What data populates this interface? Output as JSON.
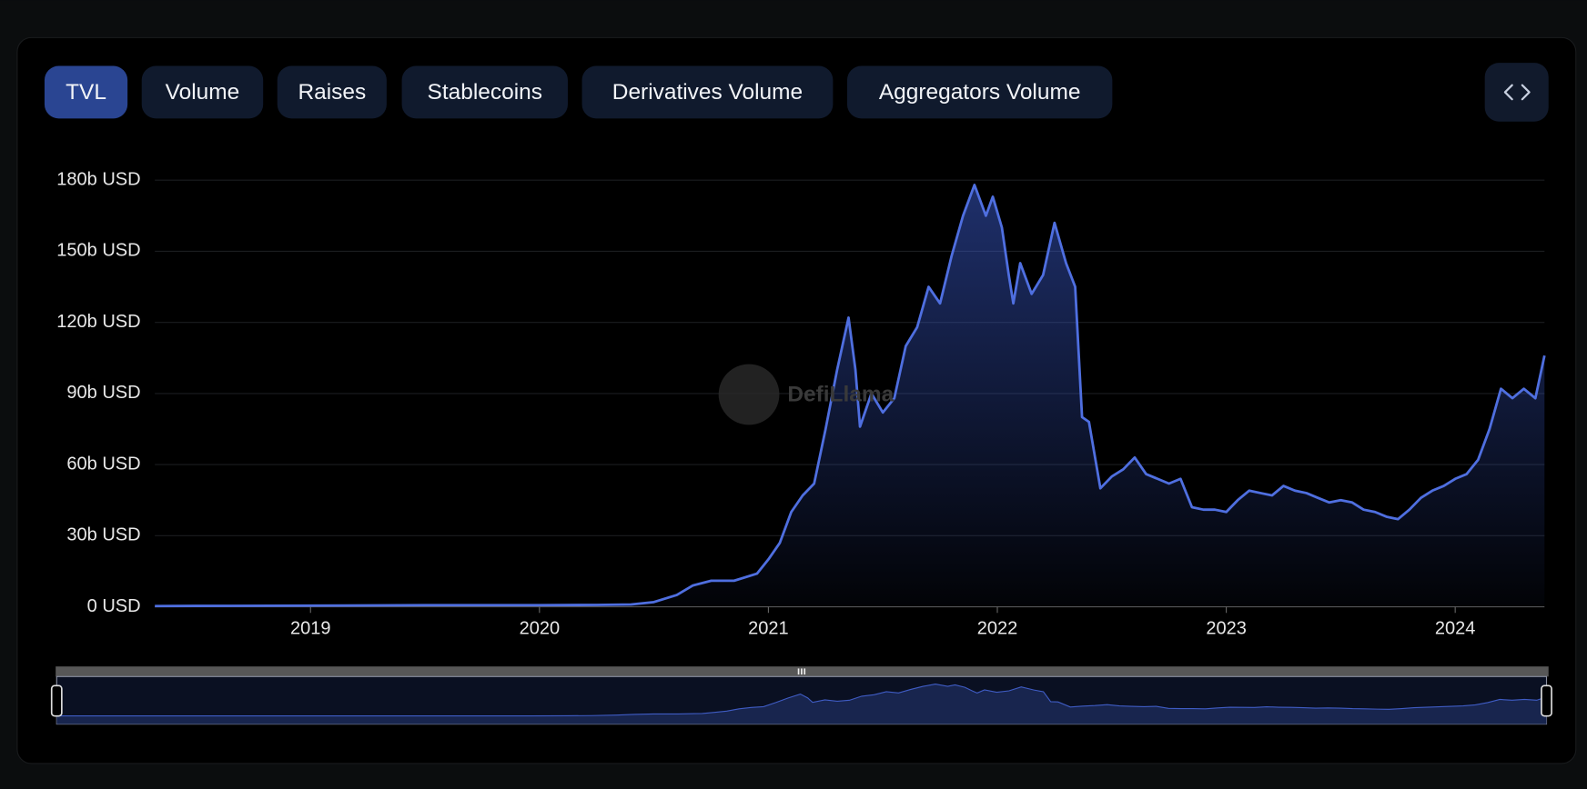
{
  "tabs": [
    "TVL",
    "Volume",
    "Raises",
    "Stablecoins",
    "Derivatives Volume",
    "Aggregators Volume"
  ],
  "chart_data": {
    "type": "area",
    "watermark": "DefiLlama",
    "color": "#4f6fe0",
    "x": [
      2018.32,
      2018.5,
      2019.0,
      2019.5,
      2020.0,
      2020.25,
      2020.4,
      2020.5,
      2020.6,
      2020.67,
      2020.75,
      2020.85,
      2020.95,
      2021.0,
      2021.05,
      2021.1,
      2021.15,
      2021.2,
      2021.25,
      2021.3,
      2021.35,
      2021.38,
      2021.4,
      2021.45,
      2021.5,
      2021.55,
      2021.6,
      2021.65,
      2021.7,
      2021.75,
      2021.8,
      2021.85,
      2021.9,
      2021.95,
      2021.98,
      2022.02,
      2022.05,
      2022.07,
      2022.1,
      2022.15,
      2022.2,
      2022.25,
      2022.3,
      2022.34,
      2022.37,
      2022.4,
      2022.45,
      2022.5,
      2022.55,
      2022.6,
      2022.65,
      2022.7,
      2022.75,
      2022.8,
      2022.85,
      2022.9,
      2022.95,
      2023.0,
      2023.05,
      2023.1,
      2023.15,
      2023.2,
      2023.25,
      2023.3,
      2023.35,
      2023.4,
      2023.45,
      2023.5,
      2023.55,
      2023.6,
      2023.65,
      2023.7,
      2023.75,
      2023.8,
      2023.85,
      2023.9,
      2023.95,
      2024.0,
      2024.05,
      2024.1,
      2024.15,
      2024.2,
      2024.25,
      2024.3,
      2024.35,
      2024.39
    ],
    "values": [
      0.3,
      0.4,
      0.5,
      0.7,
      0.7,
      0.8,
      1.0,
      2,
      5,
      9,
      11,
      11,
      14,
      20,
      27,
      40,
      47,
      52,
      75,
      100,
      122,
      100,
      76,
      90,
      82,
      88,
      110,
      118,
      135,
      128,
      148,
      165,
      178,
      165,
      173,
      160,
      140,
      128,
      145,
      132,
      140,
      162,
      145,
      135,
      80,
      78,
      50,
      55,
      58,
      63,
      56,
      54,
      52,
      54,
      42,
      41,
      41,
      40,
      45,
      49,
      48,
      47,
      51,
      49,
      48,
      46,
      44,
      45,
      44,
      41,
      40,
      38,
      37,
      41,
      46,
      49,
      51,
      54,
      56,
      62,
      75,
      92,
      88,
      92,
      88,
      106
    ],
    "xlim": [
      2018.32,
      2024.39
    ],
    "xticks": [
      2019,
      2020,
      2021,
      2022,
      2023,
      2024
    ],
    "ylim": [
      0,
      180
    ],
    "yticks": [
      {
        "value": 0,
        "label": "0 USD"
      },
      {
        "value": 30,
        "label": "30b USD"
      },
      {
        "value": 60,
        "label": "60b USD"
      },
      {
        "value": 90,
        "label": "90b USD"
      },
      {
        "value": 120,
        "label": "120b USD"
      },
      {
        "value": 150,
        "label": "150b USD"
      },
      {
        "value": 180,
        "label": "180b USD"
      }
    ],
    "grid": true
  }
}
